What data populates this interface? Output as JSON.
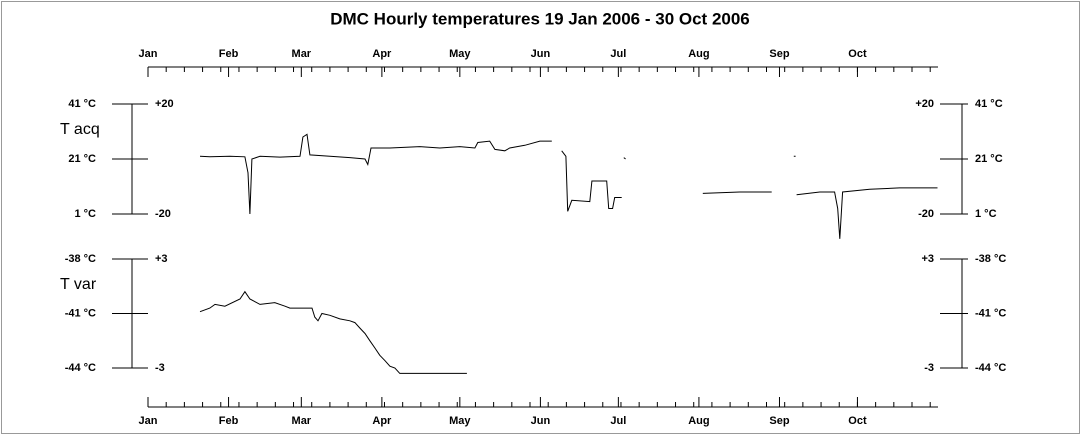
{
  "title": "DMC Hourly temperatures 19 Jan 2006 - 30 Oct 2006",
  "x_axis": {
    "xlim": [
      0,
      304
    ],
    "minor_step": 7,
    "xticks": [
      {
        "value": 0,
        "label": "Jan"
      },
      {
        "value": 31,
        "label": "Feb"
      },
      {
        "value": 59,
        "label": "Mar"
      },
      {
        "value": 90,
        "label": "Apr"
      },
      {
        "value": 120,
        "label": "May"
      },
      {
        "value": 151,
        "label": "Jun"
      },
      {
        "value": 181,
        "label": "Jul"
      },
      {
        "value": 212,
        "label": "Aug"
      },
      {
        "value": 243,
        "label": "Sep"
      },
      {
        "value": 273,
        "label": "Oct"
      }
    ]
  },
  "chart_data": [
    {
      "type": "line",
      "y_label": "T acq",
      "ylim": [
        1,
        41
      ],
      "yticks": [
        {
          "value": 41,
          "label": "41 °C"
        },
        {
          "value": 21,
          "label": "21 °C"
        },
        {
          "value": 1,
          "label": "1 °C"
        }
      ],
      "y2lim": [
        -20,
        20
      ],
      "y2ticks": [
        {
          "value": 20,
          "label": "+20"
        },
        {
          "value": -20,
          "label": "-20"
        }
      ],
      "series": [
        {
          "color": "#000000",
          "x": [
            20.0,
            23.8,
            31.5,
            37.3,
            38.5,
            39.2,
            40.0,
            43.1,
            50.8,
            58.5,
            59.6,
            61.2,
            62.3,
            70.0,
            77.7,
            83.5,
            84.6,
            85.8,
            93.1,
            104.6,
            112.3,
            120.0,
            125.8,
            126.9,
            131.5,
            133.5,
            137.3,
            139.2,
            145.0,
            150.8,
            155.4,
            null,
            159.2,
            160.8,
            161.5,
            163.1,
            170.0,
            170.8,
            176.5,
            177.3,
            178.8,
            179.6,
            182.3,
            null,
            183.1,
            183.8,
            null,
            213.5,
            227.7,
            240.0,
            null,
            248.5,
            249.2,
            null,
            249.6,
            258.5,
            264.2,
            265.4,
            266.2,
            267.3,
            277.7,
            289.2,
            303.8
          ],
          "values": [
            22,
            21.8,
            22,
            21.8,
            16,
            1,
            21,
            22,
            21.7,
            22,
            29,
            30,
            22.5,
            22,
            21.5,
            21,
            19,
            25,
            25,
            25.5,
            25,
            25.5,
            25,
            27,
            27.5,
            24.5,
            24,
            25,
            26,
            27.5,
            27.5,
            null,
            24,
            22,
            2,
            6,
            5.5,
            13,
            13,
            3,
            3,
            7,
            7,
            null,
            21.5,
            21,
            null,
            8.5,
            9,
            9,
            null,
            22,
            22,
            null,
            8,
            9,
            9,
            3,
            -8,
            9,
            10,
            10.5,
            10.5
          ]
        }
      ]
    },
    {
      "type": "line",
      "y_label": "T var",
      "ylim": [
        -44,
        -38
      ],
      "yticks": [
        {
          "value": -38,
          "label": "-38 °C"
        },
        {
          "value": -41,
          "label": "-41 °C"
        },
        {
          "value": -44,
          "label": "-44 °C"
        }
      ],
      "y2lim": [
        -3,
        3
      ],
      "y2ticks": [
        {
          "value": 3,
          "label": "+3"
        },
        {
          "value": -3,
          "label": "-3"
        }
      ],
      "series": [
        {
          "color": "#000000",
          "x": [
            20.0,
            23.8,
            25.8,
            29.6,
            35.4,
            37.3,
            39.2,
            43.1,
            48.8,
            52.7,
            54.6,
            63.1,
            64.2,
            65.4,
            66.9,
            70.0,
            73.8,
            77.7,
            79.6,
            81.5,
            83.5,
            85.4,
            87.3,
            89.2,
            91.2,
            93.1,
            95.0,
            96.9,
            122.7
          ],
          "values": [
            -40.9,
            -40.7,
            -40.5,
            -40.6,
            -40.2,
            -39.8,
            -40.2,
            -40.5,
            -40.4,
            -40.6,
            -40.7,
            -40.7,
            -41.2,
            -41.4,
            -41.0,
            -41.1,
            -41.3,
            -41.4,
            -41.5,
            -41.8,
            -42.1,
            -42.5,
            -42.9,
            -43.3,
            -43.6,
            -43.9,
            -44.0,
            -44.3,
            -44.3
          ]
        }
      ]
    }
  ]
}
